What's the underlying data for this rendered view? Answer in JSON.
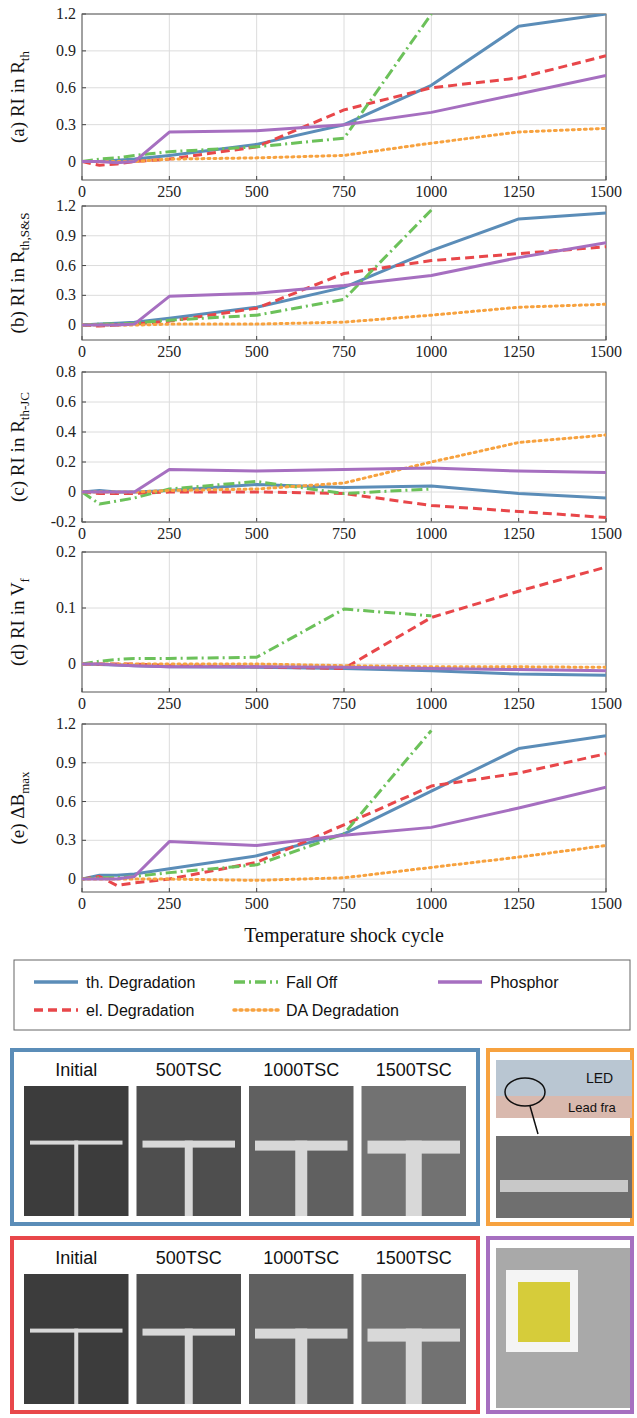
{
  "chart_data": [
    {
      "type": "line",
      "y_label": "(a) RI in R",
      "y_label_sub": "th",
      "x": [
        0,
        50,
        100,
        150,
        250,
        500,
        750,
        1000,
        1250,
        1500
      ],
      "xlim": [
        0,
        1500
      ],
      "xticks": [
        0,
        250,
        500,
        750,
        1000,
        1250,
        1500
      ],
      "ylim": [
        -0.15,
        1.2
      ],
      "yticks": [
        0,
        0.3,
        0.6,
        0.9,
        1.2
      ],
      "grid": true,
      "series": [
        {
          "name": "th. Degradation",
          "color": "#5b8db8",
          "line_style": "solid",
          "values": [
            0,
            0,
            0.01,
            0.02,
            0.05,
            0.14,
            0.3,
            0.62,
            1.1,
            1.2
          ]
        },
        {
          "name": "el. Degradation",
          "color": "#e8474a",
          "line_style": "dashed",
          "values": [
            0,
            -0.03,
            -0.02,
            0,
            0.02,
            0.12,
            0.42,
            0.6,
            0.68,
            0.86
          ]
        },
        {
          "name": "Fall Off",
          "color": "#6cc15a",
          "line_style": "dashdot",
          "values": [
            0,
            0.02,
            0.03,
            0.05,
            0.08,
            0.12,
            0.19,
            1.2,
            null,
            null
          ]
        },
        {
          "name": "DA Degradation",
          "color": "#f7a23f",
          "line_style": "dotted",
          "values": [
            0,
            0,
            0,
            0,
            0.02,
            0.03,
            0.05,
            0.15,
            0.24,
            0.27
          ]
        },
        {
          "name": "Phosphor",
          "color": "#a66fc0",
          "line_style": "solid",
          "values": [
            0,
            0,
            -0.01,
            0,
            0.24,
            0.25,
            0.3,
            0.4,
            0.55,
            0.7
          ]
        }
      ]
    },
    {
      "type": "line",
      "y_label": "(b) RI in R",
      "y_label_sub": "th,S&S",
      "x": [
        0,
        50,
        100,
        150,
        250,
        500,
        750,
        1000,
        1250,
        1500
      ],
      "xlim": [
        0,
        1500
      ],
      "xticks": [
        0,
        250,
        500,
        750,
        1000,
        1250,
        1500
      ],
      "ylim": [
        -0.15,
        1.2
      ],
      "yticks": [
        0,
        0.3,
        0.6,
        0.9,
        1.2
      ],
      "grid": true,
      "series": [
        {
          "name": "th. Degradation",
          "color": "#5b8db8",
          "line_style": "solid",
          "values": [
            0,
            0.01,
            0.02,
            0.03,
            0.07,
            0.18,
            0.38,
            0.75,
            1.07,
            1.13
          ]
        },
        {
          "name": "el. Degradation",
          "color": "#e8474a",
          "line_style": "dashed",
          "values": [
            0,
            -0.01,
            0,
            0.01,
            0.04,
            0.17,
            0.52,
            0.65,
            0.72,
            0.79
          ]
        },
        {
          "name": "Fall Off",
          "color": "#6cc15a",
          "line_style": "dashdot",
          "values": [
            0,
            0.01,
            0.01,
            0.02,
            0.05,
            0.1,
            0.26,
            1.16,
            null,
            null
          ]
        },
        {
          "name": "DA Degradation",
          "color": "#f7a23f",
          "line_style": "dotted",
          "values": [
            0,
            0,
            0,
            0,
            0.01,
            0.01,
            0.03,
            0.1,
            0.18,
            0.21
          ]
        },
        {
          "name": "Phosphor",
          "color": "#a66fc0",
          "line_style": "solid",
          "values": [
            0,
            0,
            0,
            0.01,
            0.29,
            0.32,
            0.4,
            0.5,
            0.68,
            0.83
          ]
        }
      ]
    },
    {
      "type": "line",
      "y_label": "(c) RI in R",
      "y_label_sub": "th-JC",
      "x": [
        0,
        50,
        100,
        150,
        250,
        500,
        750,
        1000,
        1250,
        1500
      ],
      "xlim": [
        0,
        1500
      ],
      "xticks": [
        0,
        250,
        500,
        750,
        1000,
        1250,
        1500
      ],
      "ylim": [
        -0.2,
        0.8
      ],
      "yticks": [
        -0.2,
        0,
        0.2,
        0.4,
        0.6,
        0.8
      ],
      "grid": true,
      "series": [
        {
          "name": "th. Degradation",
          "color": "#5b8db8",
          "line_style": "solid",
          "values": [
            0,
            0.01,
            0,
            0,
            0.01,
            0.05,
            0.03,
            0.04,
            -0.01,
            -0.04
          ]
        },
        {
          "name": "el. Degradation",
          "color": "#e8474a",
          "line_style": "dashed",
          "values": [
            0,
            -0.01,
            -0.01,
            -0.01,
            0,
            0,
            -0.01,
            -0.09,
            -0.13,
            -0.17
          ]
        },
        {
          "name": "Fall Off",
          "color": "#6cc15a",
          "line_style": "dashdot",
          "values": [
            0,
            -0.08,
            -0.06,
            -0.04,
            0.02,
            0.07,
            -0.01,
            0.02,
            null,
            null
          ]
        },
        {
          "name": "DA Degradation",
          "color": "#f7a23f",
          "line_style": "dotted",
          "values": [
            0,
            0,
            0,
            0,
            0.01,
            0.02,
            0.06,
            0.2,
            0.33,
            0.38
          ]
        },
        {
          "name": "Phosphor",
          "color": "#a66fc0",
          "line_style": "solid",
          "values": [
            0,
            0,
            0,
            0,
            0.15,
            0.14,
            0.15,
            0.16,
            0.14,
            0.13
          ]
        }
      ]
    },
    {
      "type": "line",
      "y_label": "(d) RI in V",
      "y_label_sub": "f",
      "x": [
        0,
        50,
        100,
        150,
        250,
        500,
        750,
        1000,
        1250,
        1500
      ],
      "xlim": [
        0,
        1500
      ],
      "xticks": [
        0,
        250,
        500,
        750,
        1000,
        1250,
        1500
      ],
      "ylim": [
        -0.05,
        0.2
      ],
      "yticks": [
        0,
        0.1,
        0.2
      ],
      "grid": true,
      "series": [
        {
          "name": "th. Degradation",
          "color": "#5b8db8",
          "line_style": "solid",
          "values": [
            0,
            -0.001,
            -0.002,
            -0.003,
            -0.005,
            -0.006,
            -0.008,
            -0.012,
            -0.018,
            -0.02
          ]
        },
        {
          "name": "el. Degradation",
          "color": "#e8474a",
          "line_style": "dashed",
          "values": [
            0,
            0,
            0,
            0,
            -0.003,
            -0.005,
            -0.008,
            0.083,
            0.13,
            0.173
          ]
        },
        {
          "name": "Fall Off",
          "color": "#6cc15a",
          "line_style": "dashdot",
          "values": [
            0,
            0.005,
            0.008,
            0.01,
            0.01,
            0.012,
            0.098,
            0.086,
            null,
            null
          ]
        },
        {
          "name": "DA Degradation",
          "color": "#f7a23f",
          "line_style": "dotted",
          "values": [
            0,
            0,
            0,
            0,
            0,
            0,
            -0.003,
            -0.005,
            -0.005,
            -0.006
          ]
        },
        {
          "name": "Phosphor",
          "color": "#a66fc0",
          "line_style": "solid",
          "values": [
            0,
            0,
            -0.002,
            -0.003,
            -0.005,
            -0.005,
            -0.006,
            -0.008,
            -0.01,
            -0.012
          ]
        }
      ]
    },
    {
      "type": "line",
      "y_label": "(e) ΔB",
      "y_label_sub": "max",
      "x_label": "Temperature shock cycle",
      "x": [
        0,
        50,
        100,
        150,
        250,
        500,
        750,
        1000,
        1250,
        1500
      ],
      "xlim": [
        0,
        1500
      ],
      "xticks": [
        0,
        250,
        500,
        750,
        1000,
        1250,
        1500
      ],
      "ylim": [
        -0.1,
        1.2
      ],
      "yticks": [
        0,
        0.3,
        0.6,
        0.9,
        1.2
      ],
      "grid": true,
      "legend": "bottom",
      "series": [
        {
          "name": "th. Degradation",
          "color": "#5b8db8",
          "line_style": "solid",
          "values": [
            0,
            0.03,
            0.03,
            0.04,
            0.08,
            0.18,
            0.35,
            0.68,
            1.01,
            1.11
          ]
        },
        {
          "name": "el. Degradation",
          "color": "#e8474a",
          "line_style": "dashed",
          "values": [
            0,
            0.02,
            -0.05,
            -0.03,
            0,
            0.13,
            0.42,
            0.72,
            0.82,
            0.97
          ]
        },
        {
          "name": "Fall Off",
          "color": "#6cc15a",
          "line_style": "dashdot",
          "values": [
            0,
            0.01,
            0.01,
            0.02,
            0.05,
            0.11,
            0.35,
            1.15,
            null,
            null
          ]
        },
        {
          "name": "DA Degradation",
          "color": "#f7a23f",
          "line_style": "dotted",
          "values": [
            0,
            0,
            0,
            0,
            0,
            -0.01,
            0.01,
            0.09,
            0.17,
            0.26
          ]
        },
        {
          "name": "Phosphor",
          "color": "#a66fc0",
          "line_style": "solid",
          "values": [
            0,
            0,
            0,
            0.02,
            0.29,
            0.26,
            0.34,
            0.4,
            0.55,
            0.71
          ]
        }
      ]
    }
  ],
  "photos": {
    "sequences": [
      {
        "color": "#5b8db8",
        "captions": [
          "Initial",
          "500TSC",
          "1000TSC",
          "1500TSC"
        ]
      },
      {
        "color": "#e8474a",
        "captions": [
          "Initial",
          "500TSC",
          "1000TSC",
          "1500TSC"
        ]
      }
    ],
    "cross_section": {
      "color": "#f7a23f",
      "labels": [
        "LED",
        "Lead fra"
      ]
    },
    "package": {
      "color": "#a66fc0"
    }
  }
}
